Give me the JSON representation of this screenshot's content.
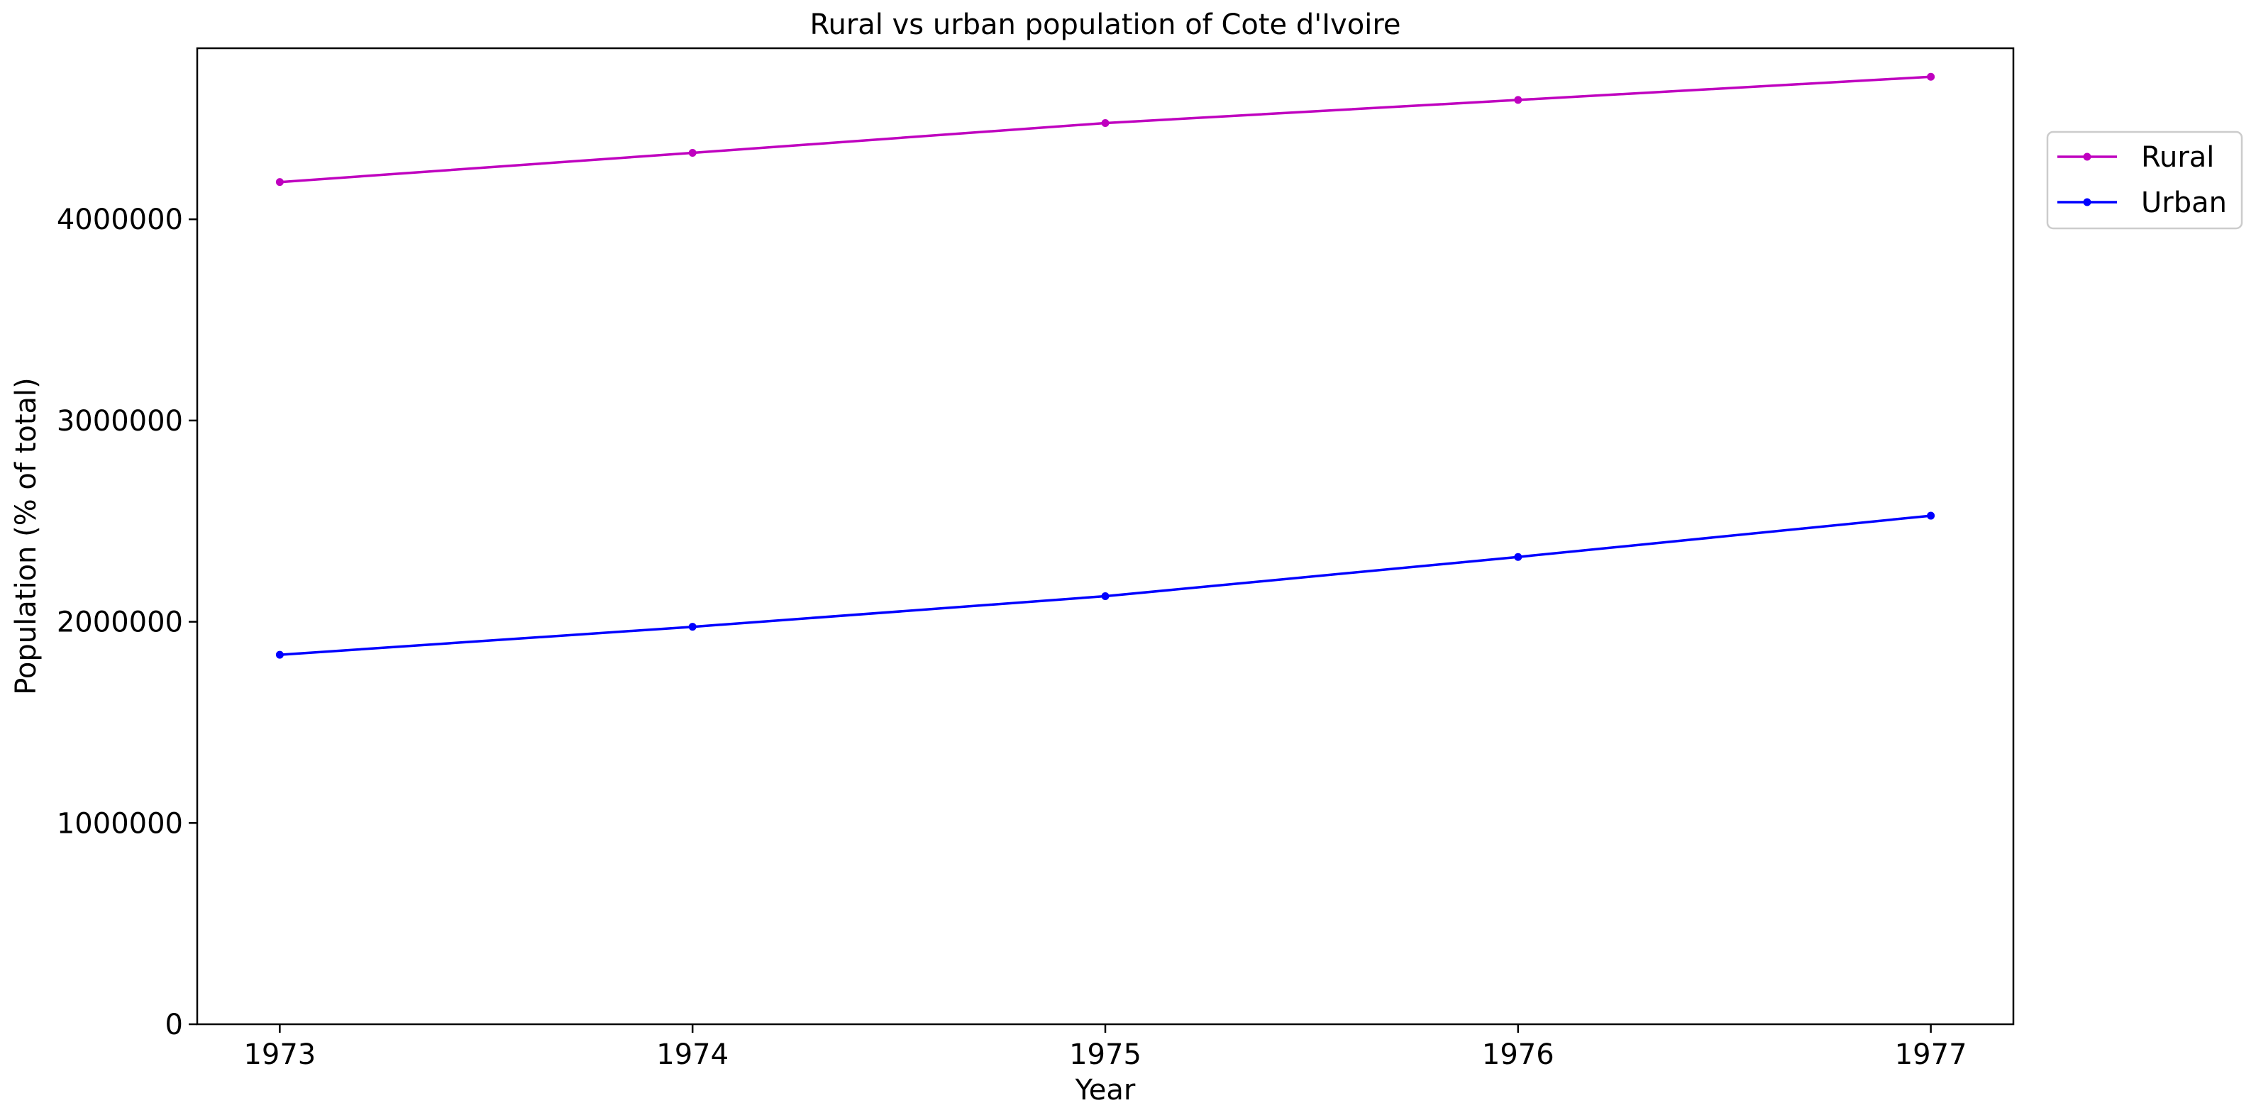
{
  "chart_data": {
    "type": "line",
    "title": "Rural vs urban population of Cote d'Ivoire",
    "xlabel": "Year",
    "ylabel": "Population (% of total)",
    "x": [
      1973,
      1974,
      1975,
      1976,
      1977
    ],
    "x_ticks": [
      "1973",
      "1974",
      "1975",
      "1976",
      "1977"
    ],
    "y_ticks": [
      0,
      1000000,
      2000000,
      3000000,
      4000000
    ],
    "y_tick_labels": [
      "0",
      "1000000",
      "2000000",
      "3000000",
      "4000000"
    ],
    "xlim": [
      1972.8,
      1977.2
    ],
    "ylim": [
      0,
      4850000
    ],
    "grid": false,
    "legend_position": "upper-right-outside",
    "series": [
      {
        "name": "Rural",
        "color": "#bf00bf",
        "marker": "circle",
        "values": [
          4185000,
          4330000,
          4478000,
          4593000,
          4708000
        ]
      },
      {
        "name": "Urban",
        "color": "#0000ff",
        "marker": "circle",
        "values": [
          1836000,
          1975000,
          2127000,
          2322000,
          2527000
        ]
      }
    ]
  }
}
